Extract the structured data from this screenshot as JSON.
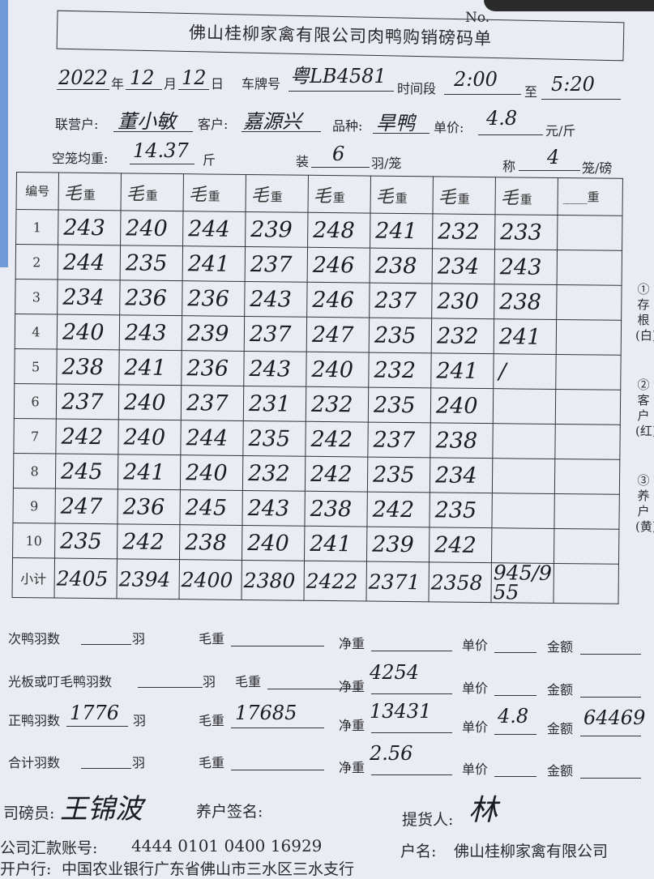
{
  "header": {
    "no_label": "No.",
    "title": "佛山桂柳家禽有限公司肉鸭购销磅码单"
  },
  "info": {
    "year": "2022",
    "year_label": "年",
    "month": "12",
    "month_label": "月",
    "day": "12",
    "day_label": "日",
    "plate_label": "车牌号",
    "plate": "粤LB4581",
    "time_label": "时间段",
    "time_from": "2:00",
    "to_label": "至",
    "time_to": "5:20",
    "partner_label": "联营户:",
    "partner": "董小敏",
    "customer_label": "客户:",
    "customer": "嘉源兴",
    "breed_label": "品种:",
    "breed": "旱鸭",
    "price_label": "单价:",
    "price": "4.8",
    "price_unit": "元/斤",
    "cage_weight_label": "空笼均重:",
    "cage_weight": "14.37",
    "cage_weight_unit": "斤",
    "load_label": "装",
    "load": "6",
    "load_unit": "羽/笼",
    "weigh_label": "称",
    "weigh": "4",
    "weigh_unit": "笼/磅"
  },
  "table": {
    "num_header": "编号",
    "col_header_mark": "毛",
    "col_header": "重",
    "last_header": "____重",
    "rows": [
      {
        "no": "1",
        "values": [
          "243",
          "240",
          "244",
          "239",
          "248",
          "241",
          "232",
          "233"
        ]
      },
      {
        "no": "2",
        "values": [
          "244",
          "235",
          "241",
          "237",
          "246",
          "238",
          "234",
          "243"
        ]
      },
      {
        "no": "3",
        "values": [
          "234",
          "236",
          "236",
          "243",
          "246",
          "237",
          "230",
          "238"
        ]
      },
      {
        "no": "4",
        "values": [
          "240",
          "243",
          "239",
          "237",
          "247",
          "235",
          "232",
          "241"
        ]
      },
      {
        "no": "5",
        "values": [
          "238",
          "241",
          "236",
          "243",
          "240",
          "232",
          "241",
          "/"
        ]
      },
      {
        "no": "6",
        "values": [
          "237",
          "240",
          "237",
          "231",
          "232",
          "235",
          "240",
          ""
        ]
      },
      {
        "no": "7",
        "values": [
          "242",
          "240",
          "244",
          "235",
          "242",
          "237",
          "238",
          ""
        ]
      },
      {
        "no": "8",
        "values": [
          "245",
          "241",
          "240",
          "232",
          "242",
          "235",
          "234",
          ""
        ]
      },
      {
        "no": "9",
        "values": [
          "247",
          "236",
          "245",
          "243",
          "238",
          "242",
          "235",
          ""
        ]
      },
      {
        "no": "10",
        "values": [
          "235",
          "242",
          "238",
          "240",
          "241",
          "239",
          "242",
          ""
        ]
      }
    ],
    "subtotal_label": "小计",
    "subtotals": [
      "2405",
      "2394",
      "2400",
      "2380",
      "2422",
      "2371",
      "2358",
      "945/955"
    ]
  },
  "side": [
    "①存根(白)",
    "②客户(红)",
    "③养户(黄)"
  ],
  "summary": [
    {
      "count_label": "次鸭羽数",
      "count": "",
      "unit": "羽",
      "gross_label": "毛重",
      "gross": "",
      "net_label": "净重",
      "net": "",
      "price_label": "单价",
      "price": "",
      "amount_label": "金额",
      "amount": ""
    },
    {
      "count_label": "光板或叮毛鸭羽数",
      "count": "",
      "unit": "羽",
      "gross_label": "毛重",
      "gross": "",
      "net_label": "净重",
      "net": "4254",
      "price_label": "单价",
      "price": "",
      "amount_label": "金额",
      "amount": ""
    },
    {
      "count_label": "正鸭羽数",
      "count": "1776",
      "unit": "羽",
      "gross_label": "毛重",
      "gross": "17685",
      "net_label": "净重",
      "net": "13431",
      "price_label": "单价",
      "price": "4.8",
      "amount_label": "金额",
      "amount": "64469"
    },
    {
      "count_label": "合计羽数",
      "count": "",
      "unit": "羽",
      "gross_label": "毛重",
      "gross": "",
      "net_label": "净重",
      "net": "2.56",
      "price_label": "单价",
      "price": "",
      "amount_label": "金额",
      "amount": ""
    }
  ],
  "footer": {
    "weigher_label": "司磅员:",
    "weigher": "王锦波",
    "farmer_label": "养户签名:",
    "receiver_label": "提货人:",
    "receiver": "林",
    "account_label": "公司汇款账号:",
    "account": "4444 0101 0400 16929",
    "account_name_label": "户名:",
    "account_name": "佛山桂柳家禽有限公司",
    "bank_label": "开户行:",
    "bank": "中国农业银行广东省佛山市三水区三水支行"
  }
}
